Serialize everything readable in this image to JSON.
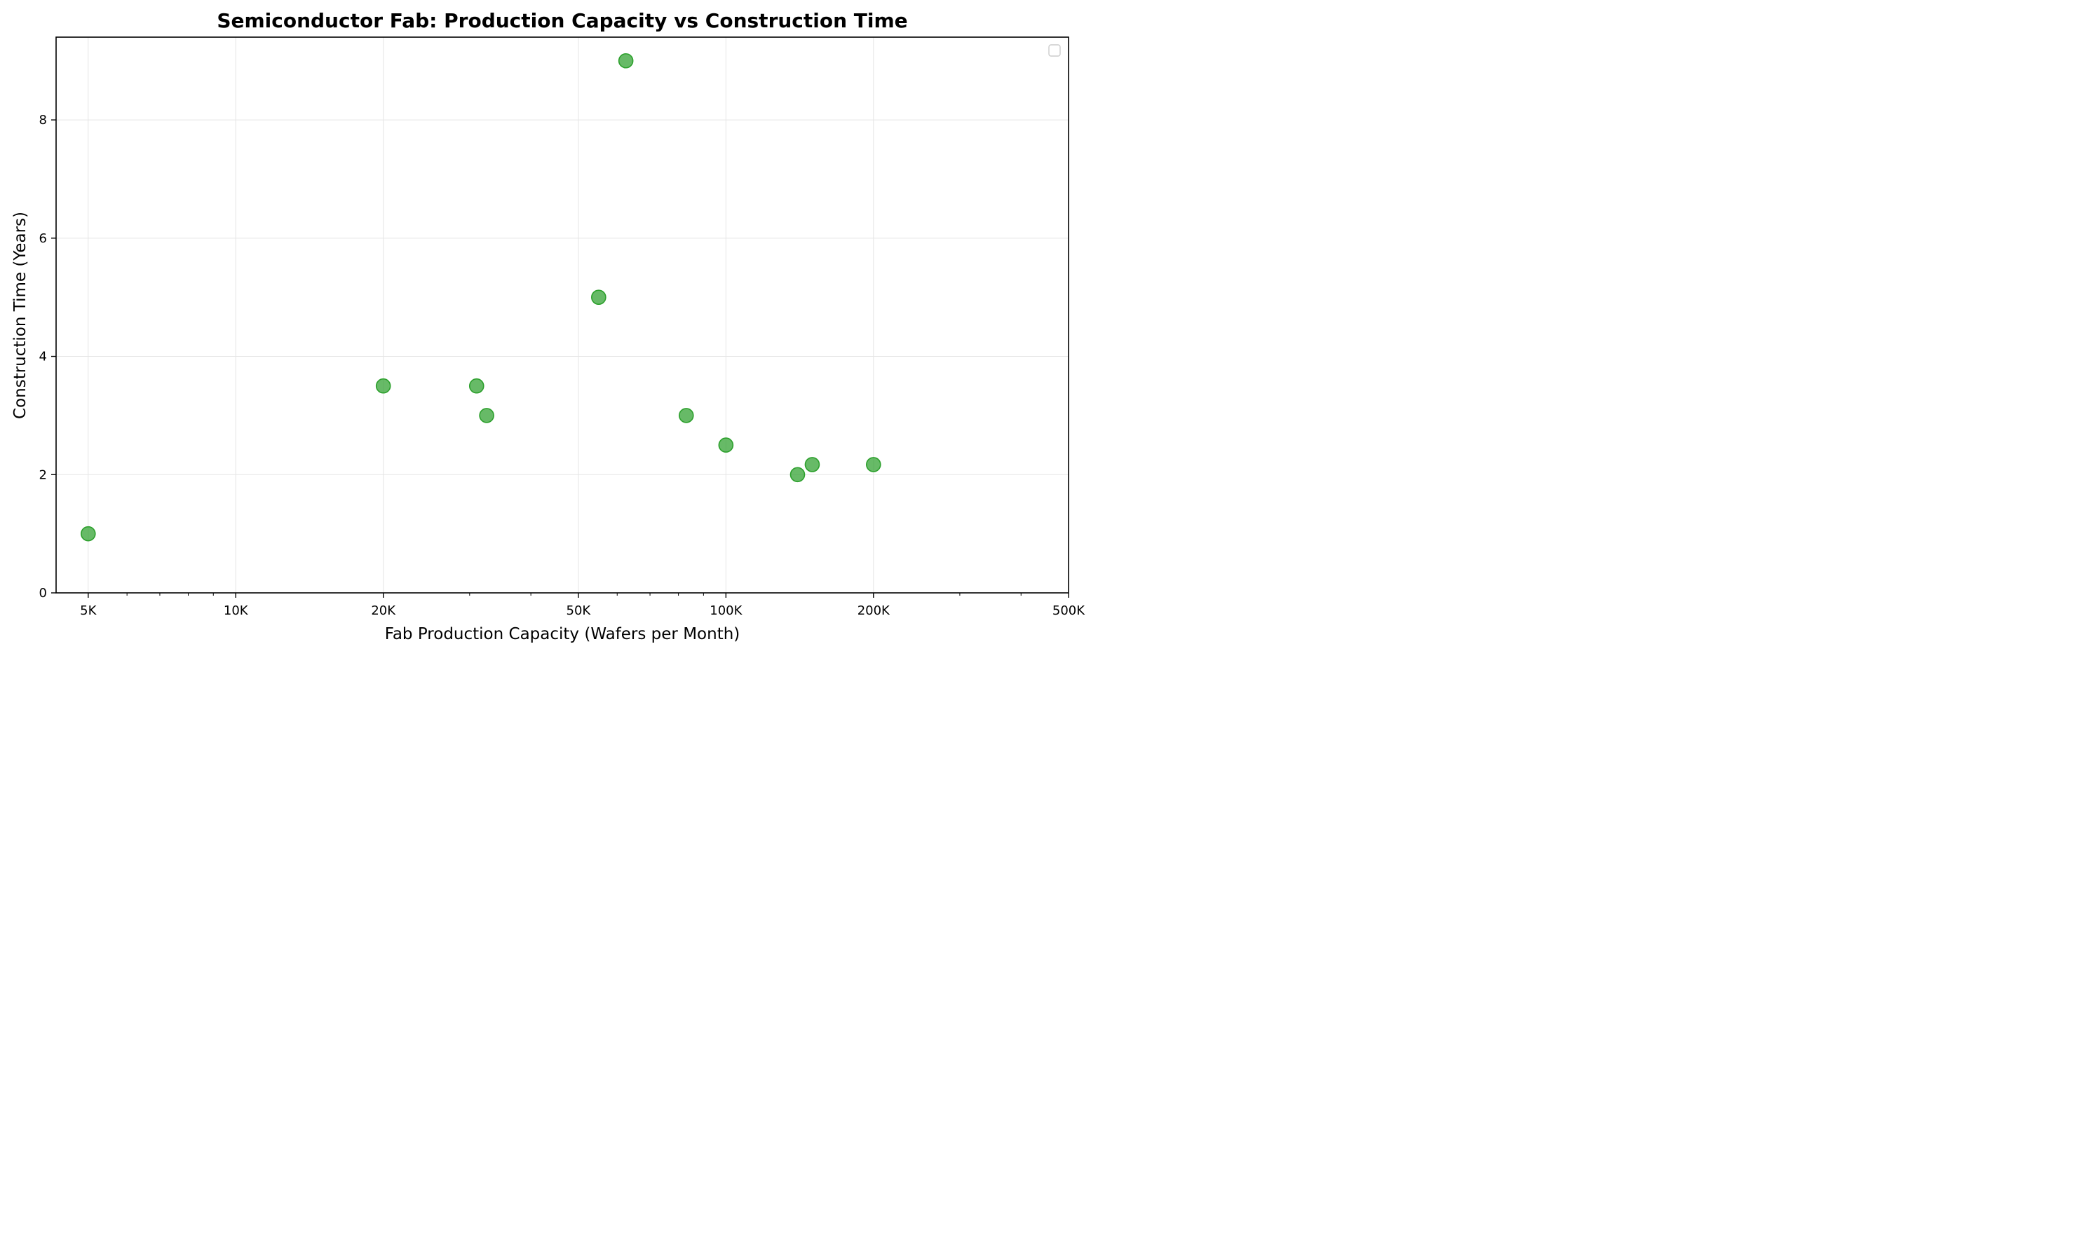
{
  "chart_data": {
    "type": "scatter",
    "title": "Semiconductor Fab: Production Capacity vs Construction Time",
    "xlabel": "Fab Production Capacity (Wafers per Month)",
    "ylabel": "Construction Time (Years)",
    "x_scale": "log",
    "xlim": [
      4300,
      500000
    ],
    "ylim": [
      0,
      9.4
    ],
    "grid": true,
    "legend": "top-right",
    "marker_color": "#2ca02c",
    "x_ticks": [
      {
        "value": 5000,
        "label": "5K"
      },
      {
        "value": 10000,
        "label": "10K"
      },
      {
        "value": 20000,
        "label": "20K"
      },
      {
        "value": 50000,
        "label": "50K"
      },
      {
        "value": 100000,
        "label": "100K"
      },
      {
        "value": 200000,
        "label": "200K"
      },
      {
        "value": 500000,
        "label": "500K"
      }
    ],
    "y_ticks": [
      {
        "value": 0,
        "label": "0"
      },
      {
        "value": 2,
        "label": "2"
      },
      {
        "value": 4,
        "label": "4"
      },
      {
        "value": 6,
        "label": "6"
      },
      {
        "value": 8,
        "label": "8"
      }
    ],
    "points": [
      {
        "x": 5000,
        "y": 1.0
      },
      {
        "x": 20000,
        "y": 3.5
      },
      {
        "x": 31000,
        "y": 3.5
      },
      {
        "x": 32500,
        "y": 3.0
      },
      {
        "x": 55000,
        "y": 5.0
      },
      {
        "x": 62500,
        "y": 9.0
      },
      {
        "x": 83000,
        "y": 3.0
      },
      {
        "x": 100000,
        "y": 2.5
      },
      {
        "x": 140000,
        "y": 2.0
      },
      {
        "x": 150000,
        "y": 2.17
      },
      {
        "x": 200000,
        "y": 2.17
      }
    ]
  }
}
